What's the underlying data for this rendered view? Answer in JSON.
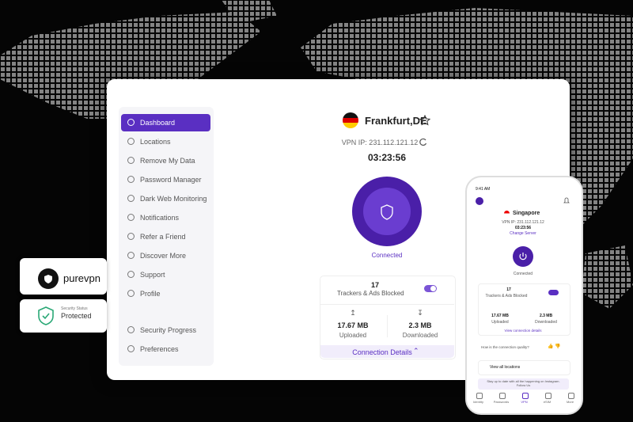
{
  "desktop": {
    "sidebar": [
      "Dashboard",
      "Locations",
      "Remove My Data",
      "Password Manager",
      "Dark Web Monitoring",
      "Notifications",
      "Refer a Friend",
      "Discover More",
      "Support",
      "Profile"
    ],
    "sidebar_bottom": [
      "Security Progress",
      "Preferences"
    ],
    "location": "Frankfurt,DE",
    "vpn_ip": "VPN IP: 231.112.121.12",
    "timer": "03:23:56",
    "status": "Connected",
    "trackers_count": 17,
    "trackers_label": "Trackers & Ads Blocked",
    "uploaded_value": "17.67 MB",
    "uploaded_label": "Uploaded",
    "downloaded_value": "2.3 MB",
    "downloaded_label": "Downloaded",
    "connection_details": "Connection Details"
  },
  "phone": {
    "time": "9:41 AM",
    "location": "Singapore",
    "vpn_ip": "VPN IP: 231.112.121.12",
    "timer": "03:23:56",
    "change_server": "Change Server",
    "status": "Connected",
    "trackers_count": 17,
    "trackers_label": "Trackers & Ads Blocked",
    "uploaded_value": "17.67 MB",
    "uploaded_label": "Uploaded",
    "downloaded_value": "2.3 MB",
    "downloaded_label": "Downloaded",
    "view_details": "View connection details",
    "quality_question": "How is the connection quality?",
    "view_locations": "View all locations",
    "banner": "Stay up to date with all the happening on Instagram. Follow Us",
    "nav": [
      "Identity",
      "Passwords",
      "VPN",
      "eSIM",
      "More"
    ]
  },
  "badges": {
    "brand": "purevpn",
    "security_status": "Security Status",
    "protected": "Protected"
  }
}
